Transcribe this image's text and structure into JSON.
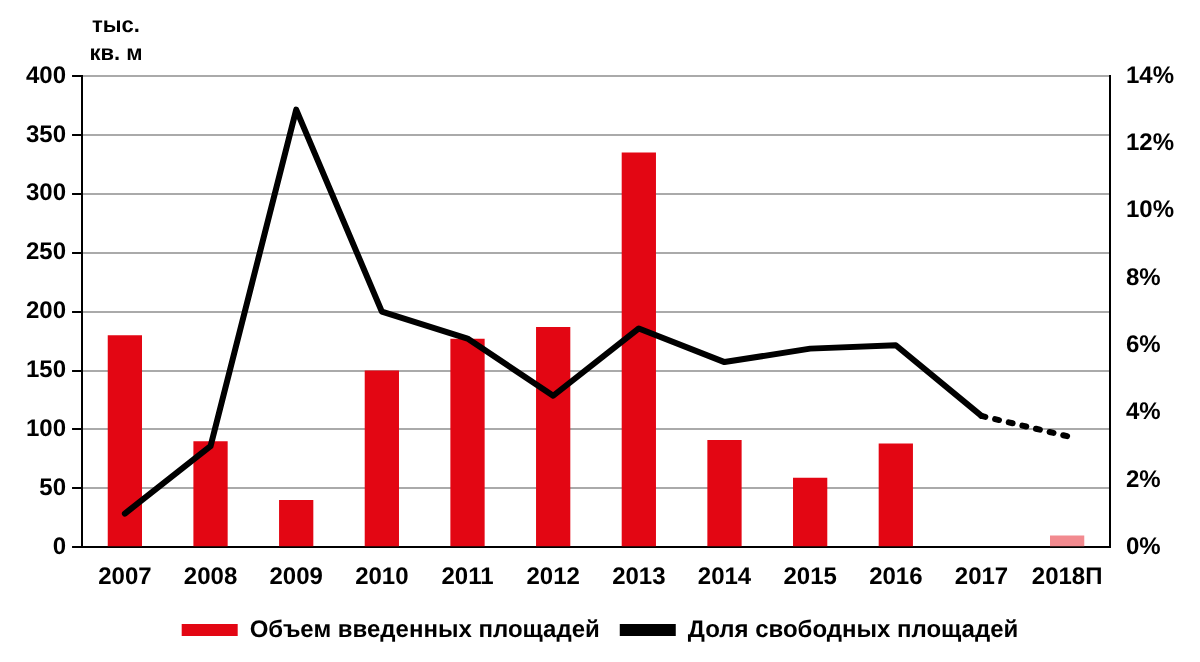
{
  "chart_data": {
    "type": "bar",
    "ylabel": "тыс. кв. м",
    "categories": [
      "2007",
      "2008",
      "2009",
      "2010",
      "2011",
      "2012",
      "2013",
      "2014",
      "2015",
      "2016",
      "2017",
      "2018П"
    ],
    "series": [
      {
        "name": "Объем введенных площадей",
        "color": "#e30613",
        "colors": [
          "#e30613",
          "#e30613",
          "#e30613",
          "#e30613",
          "#e30613",
          "#e30613",
          "#e30613",
          "#e30613",
          "#e30613",
          "#e30613",
          "#e30613",
          "#f28a8f"
        ],
        "values": [
          180,
          90,
          40,
          150,
          177,
          187,
          335,
          91,
          59,
          88,
          null,
          10
        ]
      },
      {
        "name": "Доля свободных площадей",
        "type": "line",
        "axis": "y2",
        "color": "#000000",
        "line_style": "solid",
        "values": [
          1.0,
          3.0,
          13.0,
          7.0,
          6.2,
          4.5,
          6.5,
          5.5,
          5.9,
          6.0,
          3.9,
          null
        ]
      },
      {
        "type": "line",
        "axis": "y2",
        "color": "#000000",
        "line_style": "dotted",
        "values": [
          null,
          null,
          null,
          null,
          null,
          null,
          null,
          null,
          null,
          null,
          3.9,
          3.3
        ]
      }
    ],
    "ylim": [
      0,
      400
    ],
    "yticks": [
      0,
      50,
      100,
      150,
      200,
      250,
      300,
      350,
      400
    ],
    "y2lim": [
      0,
      14
    ],
    "y2ticks": [
      {
        "value": 0,
        "label": "0%"
      },
      {
        "value": 2,
        "label": "2%"
      },
      {
        "value": 4,
        "label": "4%"
      },
      {
        "value": 6,
        "label": "6%"
      },
      {
        "value": 8,
        "label": "8%"
      },
      {
        "value": 10,
        "label": "10%"
      },
      {
        "value": 12,
        "label": "12%"
      },
      {
        "value": 14,
        "label": "14%"
      }
    ],
    "grid": "y",
    "legend": "bottom",
    "marker": "none"
  }
}
